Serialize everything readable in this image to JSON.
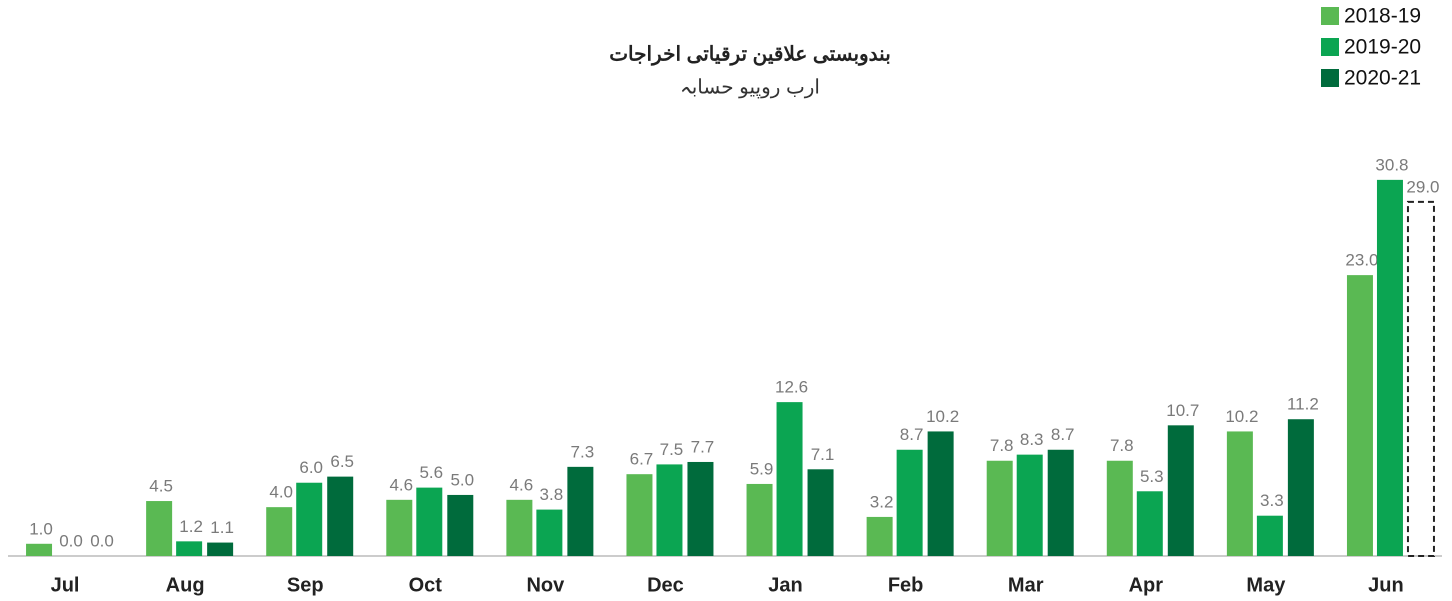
{
  "chart_data": {
    "type": "bar",
    "title": "بندوبستی علاقین ترقیاتی اخراجات",
    "subtitle": "ارب روپیو حسابہ",
    "categories": [
      "Jul",
      "Aug",
      "Sep",
      "Oct",
      "Nov",
      "Dec",
      "Jan",
      "Feb",
      "Mar",
      "Apr",
      "May",
      "Jun"
    ],
    "series": [
      {
        "name": "2018-19",
        "color": "#5ab953",
        "values": [
          1.0,
          4.5,
          4.0,
          4.6,
          4.6,
          6.7,
          5.9,
          3.2,
          7.8,
          7.8,
          10.2,
          23.0
        ],
        "value_labels": [
          "1.0",
          "4.5",
          "4.0",
          "4.6",
          "4.6",
          "6.7",
          "5.9",
          "3.2",
          "7.8",
          "7.8",
          "10.2",
          "23.0"
        ]
      },
      {
        "name": "2019-20",
        "color": "#0ba552",
        "values": [
          0.0,
          1.2,
          6.0,
          5.6,
          3.8,
          7.5,
          12.6,
          8.7,
          8.3,
          5.3,
          3.3,
          30.8
        ],
        "value_labels": [
          "0.0",
          "1.2",
          "6.0",
          "5.6",
          "3.8",
          "7.5",
          "12.6",
          "8.7",
          "8.3",
          "5.3",
          "3.3",
          "30.8"
        ]
      },
      {
        "name": "2020-21",
        "color": "#006b3c",
        "values": [
          0.0,
          1.1,
          6.5,
          5.0,
          7.3,
          7.7,
          7.1,
          10.2,
          8.7,
          10.7,
          11.2,
          29.0
        ],
        "value_labels": [
          "0.0",
          "1.1",
          "6.5",
          "5.0",
          "7.3",
          "7.7",
          "7.1",
          "10.2",
          "8.7",
          "10.7",
          "11.2",
          "29.0"
        ],
        "outline_points": [
          11
        ]
      }
    ],
    "ylim": [
      0,
      33
    ],
    "grid": false,
    "legend": "top-right"
  }
}
